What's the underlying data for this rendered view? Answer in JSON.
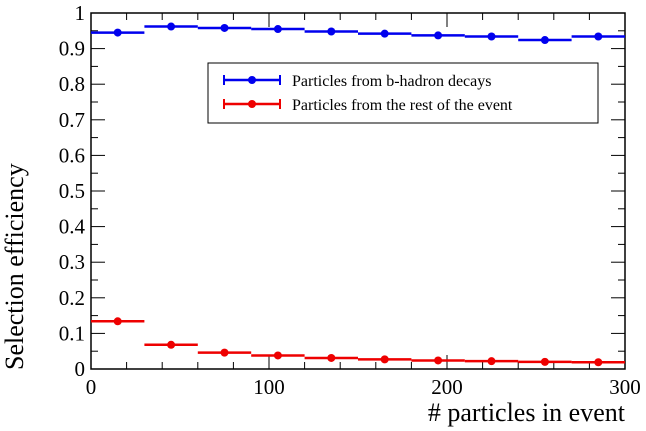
{
  "chart_data": {
    "type": "scatter",
    "title": "",
    "xlabel": "# particles in event",
    "ylabel": "Selection efficiency",
    "xlim": [
      0,
      300
    ],
    "ylim": [
      0,
      1
    ],
    "x_ticks": [
      "0",
      "100",
      "200",
      "300"
    ],
    "y_ticks": [
      "0",
      "0.1",
      "0.2",
      "0.3",
      "0.4",
      "0.5",
      "0.6",
      "0.7",
      "0.8",
      "0.9",
      "1"
    ],
    "grid": false,
    "legend_position": "top-right",
    "bin_edges": [
      0,
      30,
      60,
      90,
      120,
      150,
      180,
      210,
      240,
      270,
      300
    ],
    "series": [
      {
        "name": "Particles from b-hadron decays",
        "color": "#0000ee",
        "x": [
          15,
          45,
          75,
          105,
          135,
          165,
          195,
          225,
          255,
          285
        ],
        "y": [
          0.945,
          0.962,
          0.958,
          0.955,
          0.948,
          0.942,
          0.937,
          0.934,
          0.924,
          0.934
        ]
      },
      {
        "name": "Particles from the rest of the event",
        "color": "#ee0000",
        "x": [
          15,
          45,
          75,
          105,
          135,
          165,
          195,
          225,
          255,
          285
        ],
        "y": [
          0.134,
          0.068,
          0.046,
          0.038,
          0.031,
          0.027,
          0.024,
          0.022,
          0.02,
          0.019
        ]
      }
    ]
  }
}
